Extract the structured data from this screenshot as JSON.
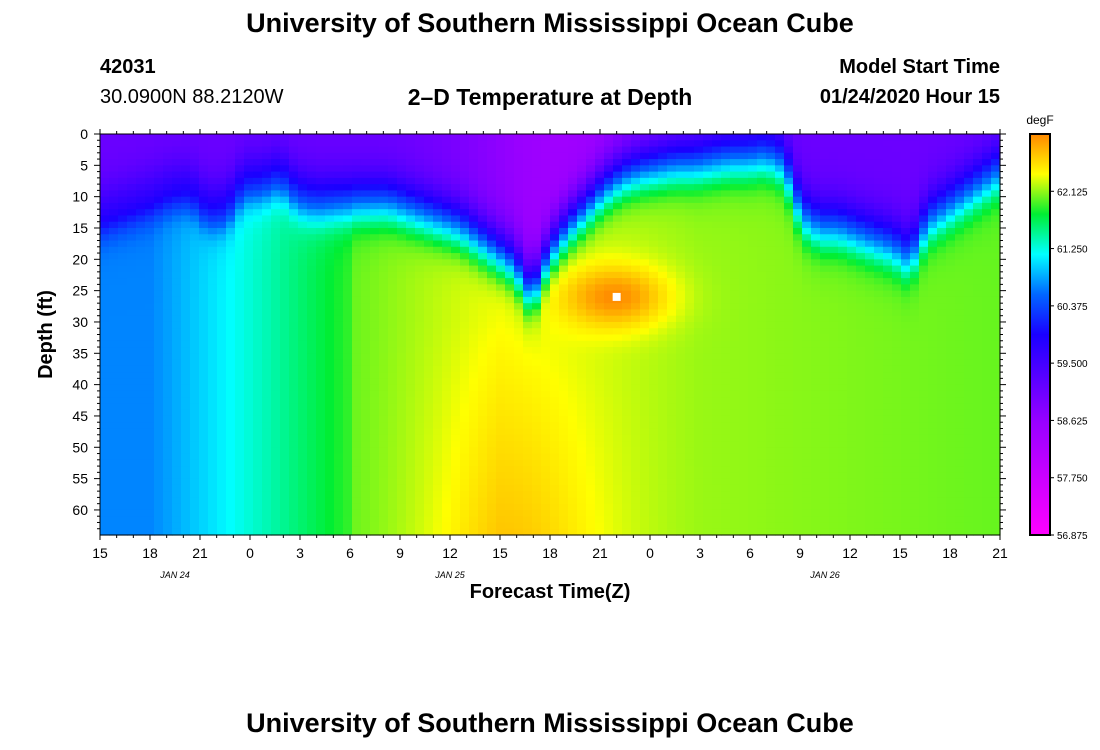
{
  "header": {
    "title_top": "University of Southern Mississippi Ocean Cube",
    "station_id": "42031",
    "location": "30.0900N 88.2120W",
    "plot_title": "2–D Temperature at Depth",
    "model_label": "Model Start Time",
    "model_time": "01/24/2020 Hour 15",
    "title_bottom": "University of Southern Mississippi Ocean Cube"
  },
  "chart_data": {
    "type": "heatmap",
    "title": "2–D Temperature at Depth",
    "xlabel": "Forecast Time(Z)",
    "ylabel": "Depth (ft)",
    "x_tick_labels": [
      "15",
      "18",
      "21",
      "0",
      "3",
      "6",
      "9",
      "12",
      "15",
      "18",
      "21",
      "0",
      "3",
      "6",
      "9",
      "12",
      "15",
      "18",
      "21"
    ],
    "date_labels": [
      {
        "label": "JAN 24",
        "at_tick": 1.5
      },
      {
        "label": "JAN 25",
        "at_tick": 7
      },
      {
        "label": "JAN 26",
        "at_tick": 14.5
      }
    ],
    "y_ticks": [
      0,
      5,
      10,
      15,
      20,
      25,
      30,
      35,
      40,
      45,
      50,
      55,
      60
    ],
    "ylim": [
      0,
      64
    ],
    "colorbar": {
      "unit": "degF",
      "range": [
        56.875,
        63.0
      ],
      "tick_labels": [
        "62.125",
        "61.250",
        "60.375",
        "59.500",
        "58.625",
        "57.750",
        "56.875"
      ]
    },
    "thermocline_depth_ft": [
      12,
      11,
      10,
      9,
      8,
      8,
      11,
      11,
      7,
      7,
      6,
      9,
      10,
      10,
      10,
      10,
      10,
      11,
      12,
      13,
      14,
      16,
      18,
      20,
      25,
      18,
      14,
      11,
      8,
      6,
      5,
      4.5,
      4,
      4,
      3.5,
      3,
      3,
      2.5,
      4,
      12,
      14,
      14,
      15,
      16,
      17,
      19,
      13,
      11,
      9,
      7,
      5
    ],
    "warm_core": {
      "hour_offset": 31,
      "depth_ft": 26,
      "temperature_degF": 63.0
    }
  }
}
